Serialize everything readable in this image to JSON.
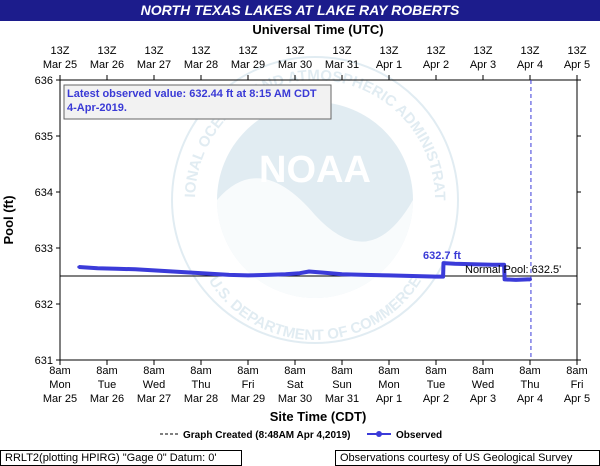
{
  "title": "NORTH TEXAS LAKES AT LAKE RAY ROBERTS",
  "top_axis_title": "Universal Time (UTC)",
  "bottom_axis_title": "Site Time (CDT)",
  "yaxis_title": "Pool (ft)",
  "annotation_box": "Latest observed value: 632.44 ft at 8:15 AM CDT 4-Apr-2019.",
  "peak_label": "632.7 ft",
  "normal_pool_label": "Normal Pool: 632.5'",
  "legend": {
    "created_label": "Graph Created (8:48AM Apr 4,2019)",
    "observed_label": "Observed"
  },
  "footer": {
    "left": "RRLT2(plotting HPIRG) \"Gage 0\" Datum: 0'",
    "right": "Observations courtesy of US Geological Survey"
  },
  "watermark": {
    "logo_text": "NOAA",
    "ring_top": "NATIONAL OCEANIC AND ATMOSPHERIC ADMINISTRATION",
    "ring_bottom": "U.S. DEPARTMENT OF COMMERCE"
  },
  "colors": {
    "title_bg": "#1c1c8c",
    "observed": "#3b3bd9",
    "annotation_text": "#3a3ad6",
    "watermark": "#c9dde8"
  },
  "chart_data": {
    "type": "line",
    "ylim": [
      631,
      636
    ],
    "yticks": [
      631,
      632,
      633,
      634,
      635,
      636
    ],
    "x_range_days": [
      0,
      11
    ],
    "top_ticks": [
      {
        "l1": "13Z",
        "l2": "Mar 25"
      },
      {
        "l1": "13Z",
        "l2": "Mar 26"
      },
      {
        "l1": "13Z",
        "l2": "Mar 27"
      },
      {
        "l1": "13Z",
        "l2": "Mar 28"
      },
      {
        "l1": "13Z",
        "l2": "Mar 29"
      },
      {
        "l1": "13Z",
        "l2": "Mar 30"
      },
      {
        "l1": "13Z",
        "l2": "Mar 31"
      },
      {
        "l1": "13Z",
        "l2": "Apr 1"
      },
      {
        "l1": "13Z",
        "l2": "Apr 2"
      },
      {
        "l1": "13Z",
        "l2": "Apr 3"
      },
      {
        "l1": "13Z",
        "l2": "Apr 4"
      },
      {
        "l1": "13Z",
        "l2": "Apr 5"
      }
    ],
    "bottom_ticks": [
      {
        "l1": "8am",
        "l2": "Mon",
        "l3": "Mar 25"
      },
      {
        "l1": "8am",
        "l2": "Tue",
        "l3": "Mar 26"
      },
      {
        "l1": "8am",
        "l2": "Wed",
        "l3": "Mar 27"
      },
      {
        "l1": "8am",
        "l2": "Thu",
        "l3": "Mar 28"
      },
      {
        "l1": "8am",
        "l2": "Fri",
        "l3": "Mar 29"
      },
      {
        "l1": "8am",
        "l2": "Sat",
        "l3": "Mar 30"
      },
      {
        "l1": "8am",
        "l2": "Sun",
        "l3": "Mar 31"
      },
      {
        "l1": "8am",
        "l2": "Mon",
        "l3": "Apr 1"
      },
      {
        "l1": "8am",
        "l2": "Tue",
        "l3": "Apr 2"
      },
      {
        "l1": "8am",
        "l2": "Wed",
        "l3": "Apr 3"
      },
      {
        "l1": "8am",
        "l2": "Thu",
        "l3": "Apr 4"
      },
      {
        "l1": "8am",
        "l2": "Fri",
        "l3": "Apr 5"
      }
    ],
    "normal_pool": 632.5,
    "graph_created_day": 10.02,
    "series": [
      {
        "name": "Observed",
        "points": [
          [
            0.4,
            632.66
          ],
          [
            0.8,
            632.64
          ],
          [
            1.2,
            632.63
          ],
          [
            1.6,
            632.62
          ],
          [
            2.0,
            632.6
          ],
          [
            2.4,
            632.58
          ],
          [
            2.8,
            632.56
          ],
          [
            3.2,
            632.54
          ],
          [
            3.6,
            632.52
          ],
          [
            4.0,
            632.51
          ],
          [
            4.4,
            632.52
          ],
          [
            4.8,
            632.53
          ],
          [
            5.1,
            632.55
          ],
          [
            5.3,
            632.58
          ],
          [
            5.6,
            632.56
          ],
          [
            6.0,
            632.53
          ],
          [
            6.5,
            632.52
          ],
          [
            7.0,
            632.51
          ],
          [
            7.5,
            632.5
          ],
          [
            8.0,
            632.49
          ],
          [
            8.15,
            632.49
          ],
          [
            8.16,
            632.73
          ],
          [
            8.4,
            632.72
          ],
          [
            8.8,
            632.71
          ],
          [
            9.2,
            632.7
          ],
          [
            9.45,
            632.7
          ],
          [
            9.46,
            632.44
          ],
          [
            9.7,
            632.43
          ],
          [
            9.95,
            632.44
          ],
          [
            10.01,
            632.44
          ]
        ]
      }
    ]
  }
}
